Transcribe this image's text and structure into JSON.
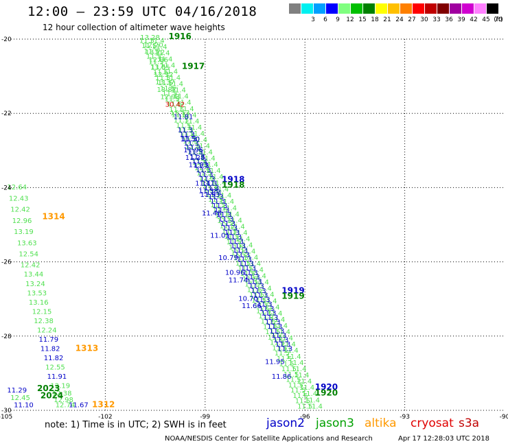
{
  "header": {
    "title": "12:00 — 23:59 UTC 04/16/2018",
    "subtitle": "12 hour collection of altimeter wave heights"
  },
  "legend": {
    "unit": "(ft)",
    "bins": [
      {
        "label": "",
        "color": "#808080"
      },
      {
        "label": "3",
        "color": "#00f0f0"
      },
      {
        "label": "6",
        "color": "#00a0ff"
      },
      {
        "label": "9",
        "color": "#0000ff"
      },
      {
        "label": "12",
        "color": "#80ff80"
      },
      {
        "label": "15",
        "color": "#00c000"
      },
      {
        "label": "18",
        "color": "#008000"
      },
      {
        "label": "21",
        "color": "#ffff00"
      },
      {
        "label": "24",
        "color": "#ffc000"
      },
      {
        "label": "27",
        "color": "#ff8000"
      },
      {
        "label": "30",
        "color": "#ff0000"
      },
      {
        "label": "33",
        "color": "#c00000"
      },
      {
        "label": "36",
        "color": "#800000"
      },
      {
        "label": "39",
        "color": "#a000a0"
      },
      {
        "label": "42",
        "color": "#d000d0"
      },
      {
        "label": "45",
        "color": "#ff80ff"
      },
      {
        "label": "70",
        "color": "#000000"
      }
    ]
  },
  "map": {
    "lon_range": [
      -105,
      -90
    ],
    "lat_range": [
      -30,
      -20
    ],
    "lon_ticks": [
      "-105",
      "-102",
      "-99",
      "-96",
      "-93",
      "-90"
    ],
    "lat_ticks": [
      "-20",
      "-22",
      "-24",
      "-26",
      "-28",
      "-30"
    ],
    "colors": {
      "jason2": "#0000c8",
      "jason3": "#50e050",
      "jason3_dark": "#008000",
      "altika": "#ff9900",
      "cryosat": "#e00000",
      "s3a": "#c00000"
    },
    "pass_labels": [
      {
        "text": "1916",
        "lon": -100.1,
        "lat": -20.0,
        "sat": "jason3_dark"
      },
      {
        "text": "1917",
        "lon": -99.7,
        "lat": -20.8,
        "sat": "jason3_dark"
      },
      {
        "text": "1918",
        "lon": -98.5,
        "lat": -23.85,
        "sat": "jason2"
      },
      {
        "text": "1918",
        "lon": -98.5,
        "lat": -24.0,
        "sat": "jason3_dark"
      },
      {
        "text": "1919",
        "lon": -96.7,
        "lat": -26.85,
        "sat": "jason2"
      },
      {
        "text": "1919",
        "lon": -96.7,
        "lat": -27.0,
        "sat": "jason3_dark"
      },
      {
        "text": "1920",
        "lon": -95.7,
        "lat": -29.45,
        "sat": "jason2"
      },
      {
        "text": "1920",
        "lon": -95.7,
        "lat": -29.6,
        "sat": "jason3_dark"
      },
      {
        "text": "1314",
        "lon": -103.9,
        "lat": -24.85,
        "sat": "altika"
      },
      {
        "text": "1313",
        "lon": -102.9,
        "lat": -28.4,
        "sat": "altika"
      },
      {
        "text": "1312",
        "lon": -102.4,
        "lat": -29.92,
        "sat": "altika"
      },
      {
        "text": "2023",
        "lon": -104.05,
        "lat": -29.48,
        "sat": "jason3_dark"
      },
      {
        "text": "2024",
        "lon": -103.95,
        "lat": -29.68,
        "sat": "jason3_dark"
      }
    ],
    "values": [
      {
        "text": "13.28",
        "lon": -100.95,
        "lat": -20.02,
        "sat": "jason3"
      },
      {
        "text": "12.20",
        "lon": -100.85,
        "lat": -20.22,
        "sat": "jason3"
      },
      {
        "text": "13.72",
        "lon": -100.8,
        "lat": -20.42,
        "sat": "jason3"
      },
      {
        "text": "12.06",
        "lon": -100.7,
        "lat": -20.62,
        "sat": "jason3"
      },
      {
        "text": "13.05",
        "lon": -100.65,
        "lat": -20.82,
        "sat": "jason3"
      },
      {
        "text": "12.32",
        "lon": -100.55,
        "lat": -21.02,
        "sat": "jason3"
      },
      {
        "text": "13.37",
        "lon": -100.5,
        "lat": -21.22,
        "sat": "jason3"
      },
      {
        "text": "13.87",
        "lon": -100.45,
        "lat": -21.42,
        "sat": "jason3"
      },
      {
        "text": "12.93",
        "lon": -100.35,
        "lat": -21.62,
        "sat": "jason3"
      },
      {
        "text": "30.42",
        "lon": -100.2,
        "lat": -21.82,
        "sat": "cryosat"
      },
      {
        "text": "15.13",
        "lon": -100.05,
        "lat": -22.05,
        "sat": "jason3"
      },
      {
        "text": "11.81",
        "lon": -99.95,
        "lat": -22.15,
        "sat": "jason2"
      },
      {
        "text": "11.50",
        "lon": -99.75,
        "lat": -22.75,
        "sat": "jason2"
      },
      {
        "text": "11.96",
        "lon": -99.65,
        "lat": -23.05,
        "sat": "jason2"
      },
      {
        "text": "11.28",
        "lon": -99.6,
        "lat": -23.25,
        "sat": "jason2"
      },
      {
        "text": "11.93",
        "lon": -99.5,
        "lat": -23.45,
        "sat": "jason2"
      },
      {
        "text": "11.41",
        "lon": -99.3,
        "lat": -23.95,
        "sat": "jason2"
      },
      {
        "text": "11.38",
        "lon": -99.2,
        "lat": -24.15,
        "sat": "jason2"
      },
      {
        "text": "11.93",
        "lon": -99.15,
        "lat": -24.25,
        "sat": "jason2"
      },
      {
        "text": "11.48",
        "lon": -99.1,
        "lat": -24.75,
        "sat": "jason2"
      },
      {
        "text": "11.01",
        "lon": -98.85,
        "lat": -25.35,
        "sat": "jason2"
      },
      {
        "text": "10.79",
        "lon": -98.6,
        "lat": -25.95,
        "sat": "jason2"
      },
      {
        "text": "10.96",
        "lon": -98.4,
        "lat": -26.35,
        "sat": "jason2"
      },
      {
        "text": "11.74",
        "lon": -98.3,
        "lat": -26.55,
        "sat": "jason2"
      },
      {
        "text": "10.70",
        "lon": -98.0,
        "lat": -27.05,
        "sat": "jason2"
      },
      {
        "text": "11.66",
        "lon": -97.9,
        "lat": -27.25,
        "sat": "jason2"
      },
      {
        "text": "11.95",
        "lon": -97.2,
        "lat": -28.75,
        "sat": "jason2"
      },
      {
        "text": "11.86",
        "lon": -97.0,
        "lat": -29.15,
        "sat": "jason2"
      },
      {
        "text": "12.64",
        "lon": -104.95,
        "lat": -24.05,
        "sat": "jason3"
      },
      {
        "text": "12.43",
        "lon": -104.9,
        "lat": -24.35,
        "sat": "jason3"
      },
      {
        "text": "12.42",
        "lon": -104.85,
        "lat": -24.65,
        "sat": "jason3"
      },
      {
        "text": "12.96",
        "lon": -104.8,
        "lat": -24.95,
        "sat": "jason3"
      },
      {
        "text": "13.19",
        "lon": -104.75,
        "lat": -25.25,
        "sat": "jason3"
      },
      {
        "text": "13.63",
        "lon": -104.65,
        "lat": -25.55,
        "sat": "jason3"
      },
      {
        "text": "12.54",
        "lon": -104.6,
        "lat": -25.85,
        "sat": "jason3"
      },
      {
        "text": "12.42",
        "lon": -104.55,
        "lat": -26.15,
        "sat": "jason3"
      },
      {
        "text": "13.44",
        "lon": -104.45,
        "lat": -26.4,
        "sat": "jason3"
      },
      {
        "text": "13.24",
        "lon": -104.4,
        "lat": -26.65,
        "sat": "jason3"
      },
      {
        "text": "13.53",
        "lon": -104.35,
        "lat": -26.9,
        "sat": "jason3"
      },
      {
        "text": "13.16",
        "lon": -104.3,
        "lat": -27.15,
        "sat": "jason3"
      },
      {
        "text": "12.15",
        "lon": -104.2,
        "lat": -27.4,
        "sat": "jason3"
      },
      {
        "text": "12.38",
        "lon": -104.15,
        "lat": -27.65,
        "sat": "jason3"
      },
      {
        "text": "12.24",
        "lon": -104.05,
        "lat": -27.9,
        "sat": "jason3"
      },
      {
        "text": "11.79",
        "lon": -104.0,
        "lat": -28.15,
        "sat": "jason2"
      },
      {
        "text": "11.82",
        "lon": -103.95,
        "lat": -28.4,
        "sat": "jason2"
      },
      {
        "text": "11.82",
        "lon": -103.85,
        "lat": -28.65,
        "sat": "jason2"
      },
      {
        "text": "12.55",
        "lon": -103.8,
        "lat": -28.9,
        "sat": "jason3"
      },
      {
        "text": "11.91",
        "lon": -103.75,
        "lat": -29.15,
        "sat": "jason2"
      },
      {
        "text": "12.19",
        "lon": -103.65,
        "lat": -29.4,
        "sat": "jason3"
      },
      {
        "text": "12.38",
        "lon": -103.6,
        "lat": -29.6,
        "sat": "jason3"
      },
      {
        "text": "12.98",
        "lon": -103.55,
        "lat": -29.78,
        "sat": "jason3"
      },
      {
        "text": "12.74",
        "lon": -103.5,
        "lat": -29.92,
        "sat": "jason3"
      },
      {
        "text": "11.29",
        "lon": -104.95,
        "lat": -29.52,
        "sat": "jason2"
      },
      {
        "text": "12.45",
        "lon": -104.85,
        "lat": -29.72,
        "sat": "jason3"
      },
      {
        "text": "11.10",
        "lon": -104.75,
        "lat": -29.92,
        "sat": "jason2"
      },
      {
        "text": "11.67",
        "lon": -103.1,
        "lat": -29.92,
        "sat": "jason2"
      }
    ],
    "tracks": [
      {
        "sat": "jason3",
        "start": [
          -100.75,
          -20.1
        ],
        "end": [
          -96.0,
          -29.95
        ],
        "n": 70,
        "fmt": "11.5"
      },
      {
        "sat": "jason3",
        "start": [
          -100.45,
          -20.1
        ],
        "end": [
          -95.7,
          -29.95
        ],
        "n": 60,
        "fmt": "11.4"
      },
      {
        "sat": "jason2",
        "start": [
          -99.6,
          -22.5
        ],
        "end": [
          -96.6,
          -28.4
        ],
        "n": 50,
        "fmt": "11.3"
      }
    ]
  },
  "footer": {
    "note": "note: 1) Time is in UTC; 2) SWH is in feet",
    "satellites": [
      {
        "label": "jason2",
        "color": "#0000c8"
      },
      {
        "label": "jason3",
        "color": "#00a000"
      },
      {
        "label": "altika",
        "color": "#ff9900"
      },
      {
        "label": "cryosat",
        "color": "#e00000"
      },
      {
        "label": "s3a",
        "color": "#c00000"
      }
    ],
    "credit": "NOAA/NESDIS Center for Satellite Applications and Research",
    "stamp": "Apr 17 12:28:03 UTC 2018"
  }
}
